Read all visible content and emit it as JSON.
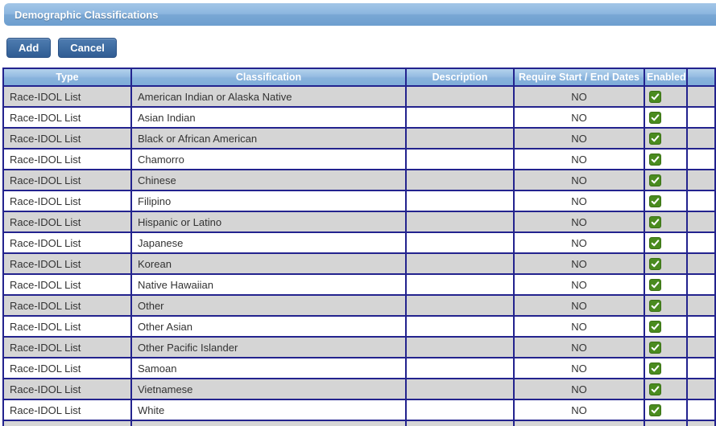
{
  "title_bar": {
    "title": "Demographic Classifications"
  },
  "toolbar": {
    "add_label": "Add",
    "cancel_label": "Cancel"
  },
  "table": {
    "columns": [
      "Type",
      "Classification",
      "Description",
      "Require Start / End Dates",
      "Enabled",
      ""
    ],
    "rows": [
      {
        "type": "Race-IDOL List",
        "classification": "American Indian or Alaska Native",
        "description": "",
        "require_start_end_dates": "NO",
        "enabled": true
      },
      {
        "type": "Race-IDOL List",
        "classification": "Asian Indian",
        "description": "",
        "require_start_end_dates": "NO",
        "enabled": true
      },
      {
        "type": "Race-IDOL List",
        "classification": "Black or African American",
        "description": "",
        "require_start_end_dates": "NO",
        "enabled": true
      },
      {
        "type": "Race-IDOL List",
        "classification": "Chamorro",
        "description": "",
        "require_start_end_dates": "NO",
        "enabled": true
      },
      {
        "type": "Race-IDOL List",
        "classification": "Chinese",
        "description": "",
        "require_start_end_dates": "NO",
        "enabled": true
      },
      {
        "type": "Race-IDOL List",
        "classification": "Filipino",
        "description": "",
        "require_start_end_dates": "NO",
        "enabled": true
      },
      {
        "type": "Race-IDOL List",
        "classification": "Hispanic or Latino",
        "description": "",
        "require_start_end_dates": "NO",
        "enabled": true
      },
      {
        "type": "Race-IDOL List",
        "classification": "Japanese",
        "description": "",
        "require_start_end_dates": "NO",
        "enabled": true
      },
      {
        "type": "Race-IDOL List",
        "classification": "Korean",
        "description": "",
        "require_start_end_dates": "NO",
        "enabled": true
      },
      {
        "type": "Race-IDOL List",
        "classification": "Native Hawaiian",
        "description": "",
        "require_start_end_dates": "NO",
        "enabled": true
      },
      {
        "type": "Race-IDOL List",
        "classification": "Other",
        "description": "",
        "require_start_end_dates": "NO",
        "enabled": true
      },
      {
        "type": "Race-IDOL List",
        "classification": "Other Asian",
        "description": "",
        "require_start_end_dates": "NO",
        "enabled": true
      },
      {
        "type": "Race-IDOL List",
        "classification": "Other Pacific Islander",
        "description": "",
        "require_start_end_dates": "NO",
        "enabled": true
      },
      {
        "type": "Race-IDOL List",
        "classification": "Samoan",
        "description": "",
        "require_start_end_dates": "NO",
        "enabled": true
      },
      {
        "type": "Race-IDOL List",
        "classification": "Vietnamese",
        "description": "",
        "require_start_end_dates": "NO",
        "enabled": true
      },
      {
        "type": "Race-IDOL List",
        "classification": "White",
        "description": "",
        "require_start_end_dates": "NO",
        "enabled": true
      }
    ]
  },
  "icons": {
    "enabled_icon": "checkbox-checked-icon"
  },
  "colors": {
    "border_navy": "#23238e",
    "row_gray": "#d5d5d5",
    "row_white": "#ffffff",
    "cell_text": "#333333",
    "titlebar_top": "#a3c6e7",
    "titlebar_bottom": "#6d9ecf",
    "header_top": "#b3d1ec",
    "header_bottom": "#7fadd9",
    "button_top": "#4f7cb0",
    "button_bottom": "#315d93",
    "checkbox_green": "#4a8b1f"
  }
}
